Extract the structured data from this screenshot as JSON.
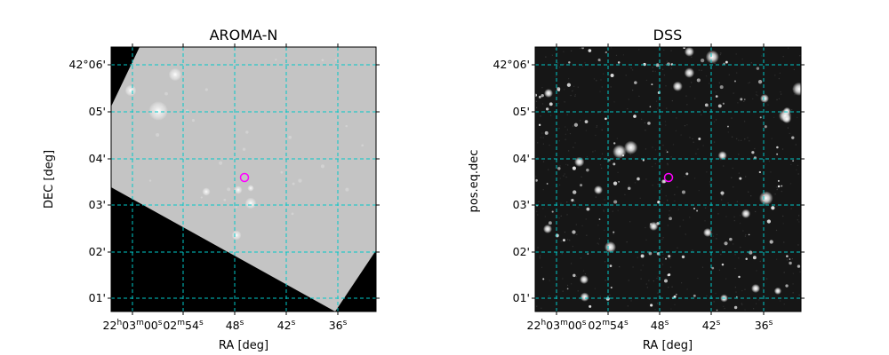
{
  "panels": [
    {
      "title": "AROMA-N",
      "xlabel": "RA [deg]",
      "ylabel": "DEC [deg]",
      "ra_ticks": [
        "22h03m00s",
        "02m54s",
        "48s",
        "42s",
        "36s"
      ],
      "dec_ticks": [
        "42°06'",
        "05'",
        "04'",
        "03'",
        "02'",
        "01'"
      ],
      "grid": true,
      "grid_color": "#00c8c8",
      "marker_color": "#ff00ff",
      "image_style": "grayscale-survey-with-coverage-edge"
    },
    {
      "title": "DSS",
      "xlabel": "RA [deg]",
      "ylabel": "pos.eq.dec",
      "ra_ticks": [
        "22h03m00s",
        "02m54s",
        "48s",
        "42s",
        "36s"
      ],
      "dec_ticks": [
        "42°06'",
        "05'",
        "04'",
        "03'",
        "02'",
        "01'"
      ],
      "grid": true,
      "grid_color": "#00c8c8",
      "marker_color": "#ff00ff",
      "image_style": "dark-star-field"
    }
  ]
}
